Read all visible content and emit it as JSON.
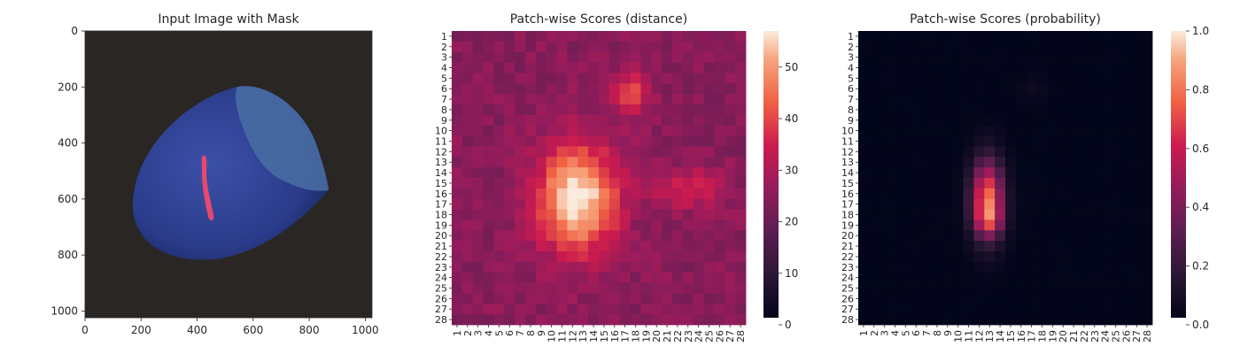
{
  "chart_data": [
    {
      "type": "image",
      "title": "Input Image with Mask",
      "xlim": [
        0,
        1024
      ],
      "ylim": [
        1024,
        0
      ],
      "xticks": [
        "0",
        "200",
        "400",
        "600",
        "800",
        "1000"
      ],
      "yticks": [
        "0",
        "200",
        "400",
        "600",
        "800",
        "1000"
      ],
      "colors": {
        "background": "#2a2624",
        "object": "#2b3f8f",
        "object_dark": "#14204f",
        "cap": "#4a6fa3",
        "mask": "#e8476e"
      }
    },
    {
      "type": "heatmap",
      "title": "Patch-wise Scores (distance)",
      "rows": 28,
      "cols": 28,
      "row_labels": [
        "1",
        "2",
        "3",
        "4",
        "5",
        "6",
        "7",
        "8",
        "9",
        "10",
        "11",
        "12",
        "13",
        "14",
        "15",
        "16",
        "17",
        "18",
        "19",
        "20",
        "21",
        "22",
        "23",
        "24",
        "25",
        "26",
        "27",
        "28"
      ],
      "col_labels": [
        "1",
        "2",
        "3",
        "4",
        "5",
        "6",
        "7",
        "8",
        "9",
        "10",
        "11",
        "12",
        "13",
        "14",
        "15",
        "16",
        "17",
        "18",
        "19",
        "20",
        "21",
        "22",
        "23",
        "24",
        "25",
        "26",
        "27",
        "28"
      ],
      "colorbar": {
        "min": 0,
        "max": 57,
        "ticks": [
          "0",
          "10",
          "20",
          "30",
          "40",
          "50"
        ]
      },
      "background": 24,
      "blobs": [
        {
          "row": 16.5,
          "col": 12.5,
          "sigma_row": 3.6,
          "sigma_col": 2.6,
          "peak": 34
        },
        {
          "row": 6.5,
          "col": 17.5,
          "sigma_row": 1.4,
          "sigma_col": 1.3,
          "peak": 15
        },
        {
          "row": 15.5,
          "col": 23.0,
          "sigma_row": 1.3,
          "sigma_col": 2.2,
          "peak": 12
        }
      ]
    },
    {
      "type": "heatmap",
      "title": "Patch-wise Scores (probability)",
      "rows": 28,
      "cols": 28,
      "row_labels": [
        "1",
        "2",
        "3",
        "4",
        "5",
        "6",
        "7",
        "8",
        "9",
        "10",
        "11",
        "12",
        "13",
        "14",
        "15",
        "16",
        "17",
        "18",
        "19",
        "20",
        "21",
        "22",
        "23",
        "24",
        "25",
        "26",
        "27",
        "28"
      ],
      "col_labels": [
        "1",
        "2",
        "3",
        "4",
        "5",
        "6",
        "7",
        "8",
        "9",
        "10",
        "11",
        "12",
        "13",
        "14",
        "15",
        "16",
        "17",
        "18",
        "19",
        "20",
        "21",
        "22",
        "23",
        "24",
        "25",
        "26",
        "27",
        "28"
      ],
      "colorbar": {
        "min": 0.0,
        "max": 1.0,
        "ticks": [
          "0.0",
          "0.2",
          "0.4",
          "0.6",
          "0.8",
          "1.0"
        ]
      },
      "background": 0.0,
      "blobs": [
        {
          "row": 16.5,
          "col": 12.8,
          "sigma_row": 2.6,
          "sigma_col": 1.05,
          "peak": 0.78
        },
        {
          "row": 18.5,
          "col": 13.0,
          "sigma_row": 1.0,
          "sigma_col": 0.9,
          "peak": 0.25
        },
        {
          "row": 6.0,
          "col": 17.0,
          "sigma_row": 1.0,
          "sigma_col": 1.0,
          "peak": 0.04
        }
      ]
    }
  ]
}
